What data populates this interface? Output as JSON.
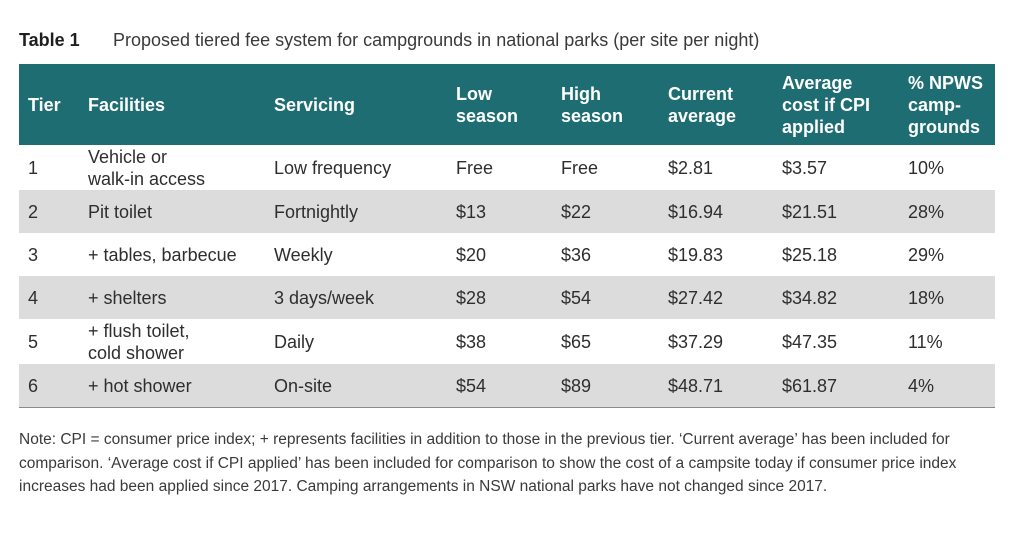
{
  "caption": {
    "label": "Table 1",
    "text": "Proposed tiered fee system for campgrounds in national parks (per site per night)"
  },
  "columns": [
    {
      "line1": "Tier",
      "line2": "",
      "line3": ""
    },
    {
      "line1": "Facilities",
      "line2": "",
      "line3": ""
    },
    {
      "line1": "Servicing",
      "line2": "",
      "line3": ""
    },
    {
      "line1": "Low",
      "line2": "season",
      "line3": ""
    },
    {
      "line1": "High",
      "line2": "season",
      "line3": ""
    },
    {
      "line1": "Current",
      "line2": "average",
      "line3": ""
    },
    {
      "line1": "Average",
      "line2": "cost if CPI",
      "line3": "applied"
    },
    {
      "line1": "% NPWS",
      "line2": "camp-",
      "line3": "grounds"
    }
  ],
  "rows": [
    {
      "tier": "1",
      "facilities_1": "Vehicle or",
      "facilities_2": "walk-in access",
      "servicing": "Low frequency",
      "low": "Free",
      "high": "Free",
      "current": "$2.81",
      "cpi": "$3.57",
      "pct": "10%"
    },
    {
      "tier": "2",
      "facilities_1": "Pit toilet",
      "facilities_2": "",
      "servicing": "Fortnightly",
      "low": "$13",
      "high": "$22",
      "current": "$16.94",
      "cpi": "$21.51",
      "pct": "28%"
    },
    {
      "tier": "3",
      "facilities_1": "+ tables, barbecue",
      "facilities_2": "",
      "servicing": "Weekly",
      "low": "$20",
      "high": "$36",
      "current": "$19.83",
      "cpi": "$25.18",
      "pct": "29%"
    },
    {
      "tier": "4",
      "facilities_1": "+ shelters",
      "facilities_2": "",
      "servicing": "3 days/week",
      "low": "$28",
      "high": "$54",
      "current": "$27.42",
      "cpi": "$34.82",
      "pct": "18%"
    },
    {
      "tier": "5",
      "facilities_1": "+ flush toilet,",
      "facilities_2": "cold shower",
      "servicing": "Daily",
      "low": "$38",
      "high": "$65",
      "current": "$37.29",
      "cpi": "$47.35",
      "pct": "11%"
    },
    {
      "tier": "6",
      "facilities_1": "+ hot shower",
      "facilities_2": "",
      "servicing": "On-site",
      "low": "$54",
      "high": "$89",
      "current": "$48.71",
      "cpi": "$61.87",
      "pct": "4%"
    }
  ],
  "note": "Note: CPI = consumer price index; + represents facilities in addition to those in the previous tier. ‘Current average’ has been included for comparison. ‘Average cost if CPI applied’ has been included for comparison to show the cost of a campsite today if consumer price index increases had been applied since 2017. Camping arrangements in NSW national parks have not changed since 2017."
}
